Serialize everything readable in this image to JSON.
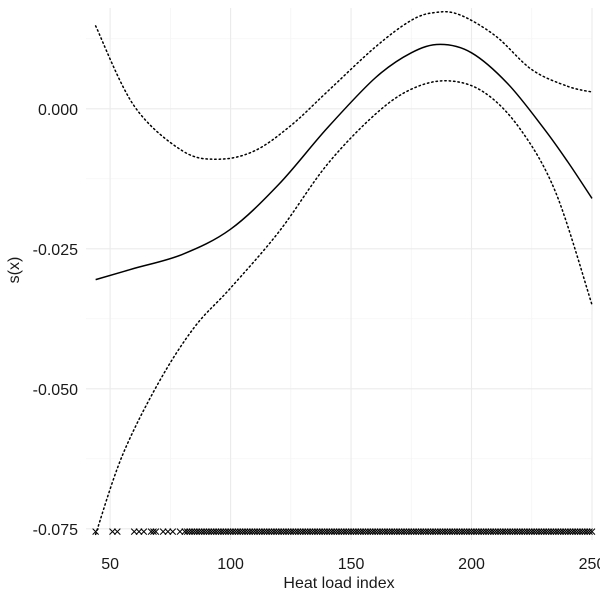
{
  "chart_data": {
    "type": "line",
    "title": "",
    "xlabel": "Heat load index",
    "ylabel": "s(x)",
    "xlim": [
      40,
      250
    ],
    "ylim": [
      -0.077,
      0.018
    ],
    "x_ticks": [
      50,
      100,
      150,
      200,
      250
    ],
    "x_tick_labels": [
      "50",
      "100",
      "150",
      "200",
      "250"
    ],
    "y_ticks": [
      -0.075,
      -0.05,
      -0.025,
      0.0
    ],
    "y_tick_labels": [
      "-0.075",
      "-0.050",
      "-0.025",
      "0.000"
    ],
    "grid": true,
    "legend": "none",
    "series": [
      {
        "role": "fit",
        "style": "solid",
        "x": [
          44,
          60,
          80,
          100,
          120,
          140,
          160,
          175,
          187,
          200,
          215,
          230,
          240,
          250
        ],
        "y": [
          -0.0305,
          -0.0285,
          -0.026,
          -0.0215,
          -0.0135,
          -0.0035,
          0.0055,
          0.01,
          0.0115,
          0.01,
          0.0045,
          -0.0035,
          -0.0095,
          -0.016
        ]
      },
      {
        "role": "upper confidence band",
        "style": "dotted",
        "x": [
          44,
          60,
          80,
          95,
          110,
          125,
          140,
          160,
          175,
          185,
          195,
          210,
          225,
          240,
          250
        ],
        "y": [
          0.0148,
          0.0005,
          -0.0075,
          -0.009,
          -0.0075,
          -0.003,
          0.003,
          0.011,
          0.0158,
          0.0172,
          0.0168,
          0.013,
          0.007,
          0.004,
          0.003
        ]
      },
      {
        "role": "lower confidence band",
        "style": "dotted",
        "x": [
          44,
          55,
          70,
          85,
          100,
          120,
          140,
          160,
          175,
          190,
          205,
          220,
          235,
          250
        ],
        "y": [
          -0.076,
          -0.062,
          -0.049,
          -0.039,
          -0.032,
          -0.022,
          -0.01,
          -0.001,
          0.0035,
          0.005,
          0.003,
          -0.0035,
          -0.015,
          -0.035
        ]
      }
    ],
    "rug": {
      "y": -0.0755,
      "x": [
        44,
        51,
        53,
        60,
        62,
        64,
        67,
        68,
        69,
        72,
        74,
        76,
        79,
        81,
        82,
        83,
        84,
        85,
        86,
        87,
        88,
        89,
        90,
        91,
        92,
        93,
        94,
        95,
        96,
        97,
        98,
        99,
        100,
        101,
        102,
        103,
        104,
        105,
        106,
        107,
        108,
        109,
        110,
        111,
        112,
        113,
        114,
        115,
        116,
        117,
        118,
        119,
        120,
        121,
        122,
        123,
        124,
        125,
        126,
        127,
        128,
        129,
        130,
        131,
        132,
        133,
        134,
        135,
        136,
        137,
        138,
        139,
        140,
        141,
        142,
        143,
        144,
        145,
        146,
        147,
        148,
        149,
        150,
        151,
        152,
        153,
        154,
        155,
        156,
        157,
        158,
        159,
        160,
        161,
        162,
        163,
        164,
        165,
        166,
        167,
        168,
        169,
        170,
        171,
        172,
        173,
        174,
        175,
        176,
        177,
        178,
        179,
        180,
        181,
        182,
        183,
        184,
        185,
        186,
        187,
        188,
        189,
        190,
        191,
        192,
        193,
        194,
        195,
        196,
        197,
        198,
        199,
        200,
        201,
        202,
        203,
        204,
        205,
        206,
        207,
        208,
        209,
        210,
        211,
        212,
        213,
        214,
        215,
        216,
        217,
        218,
        219,
        220,
        221,
        222,
        223,
        224,
        225,
        226,
        227,
        228,
        229,
        230,
        231,
        232,
        233,
        234,
        235,
        236,
        237,
        238,
        239,
        240,
        241,
        242,
        243,
        244,
        245,
        246,
        247,
        248,
        249,
        250
      ]
    }
  }
}
